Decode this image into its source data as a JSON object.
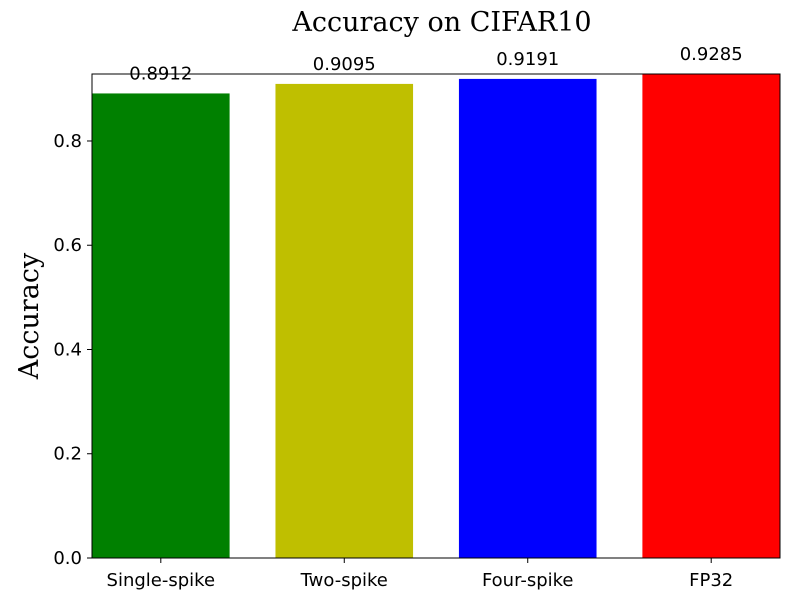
{
  "chart_data": {
    "type": "bar",
    "title": "Accuracy on CIFAR10",
    "xlabel": "",
    "ylabel": "Accuracy",
    "categories": [
      "Single-spike",
      "Two-spike",
      "Four-spike",
      "FP32"
    ],
    "values": [
      0.8912,
      0.9095,
      0.9191,
      0.9285
    ],
    "value_labels": [
      "0.8912",
      "0.9095",
      "0.9191",
      "0.9285"
    ],
    "colors": [
      "#008000",
      "#bfbf00",
      "#0000ff",
      "#ff0000"
    ],
    "ylim": [
      0,
      0.9285
    ],
    "yticks": [
      0.0,
      0.2,
      0.4,
      0.6,
      0.8
    ],
    "ytick_labels": [
      "0.0",
      "0.2",
      "0.4",
      "0.6",
      "0.8"
    ],
    "grid": false,
    "legend": "none"
  }
}
